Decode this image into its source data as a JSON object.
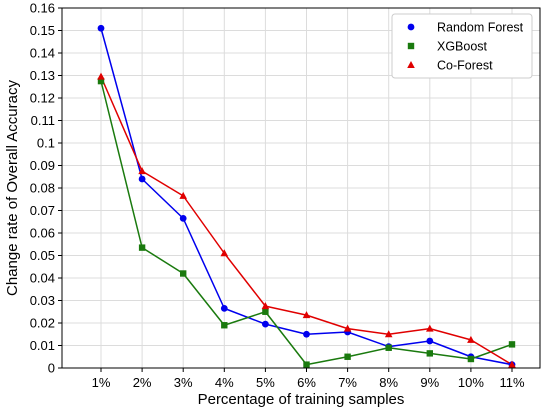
{
  "chart_data": {
    "type": "line",
    "title": "",
    "xlabel": "Percentage of training samples",
    "ylabel": "Change rate of Overall Accuracy",
    "categories": [
      "1%",
      "2%",
      "3%",
      "4%",
      "5%",
      "6%",
      "7%",
      "8%",
      "9%",
      "10%",
      "11%"
    ],
    "yticks": [
      "0",
      "0.01",
      "0.02",
      "0.03",
      "0.04",
      "0.05",
      "0.06",
      "0.07",
      "0.08",
      "0.09",
      "0.1",
      "0.11",
      "0.12",
      "0.13",
      "0.14",
      "0.15",
      "0.16"
    ],
    "ylim": [
      0,
      0.16
    ],
    "grid": true,
    "legend_position": "top-right",
    "series": [
      {
        "name": "Random Forest",
        "color": "#0000ee",
        "marker": "circle",
        "values": [
          0.151,
          0.084,
          0.0665,
          0.0265,
          0.0195,
          0.015,
          0.016,
          0.0095,
          0.012,
          0.005,
          0.0015
        ]
      },
      {
        "name": "XGBoost",
        "color": "#1a7a0e",
        "marker": "square",
        "values": [
          0.1275,
          0.0535,
          0.042,
          0.019,
          0.025,
          0.0015,
          0.005,
          0.009,
          0.0065,
          0.004,
          0.0105
        ]
      },
      {
        "name": "Co-Forest",
        "color": "#e00000",
        "marker": "triangle",
        "values": [
          0.1295,
          0.0875,
          0.0765,
          0.051,
          0.0275,
          0.0235,
          0.0175,
          0.015,
          0.0175,
          0.0125,
          0.0015
        ]
      }
    ]
  }
}
